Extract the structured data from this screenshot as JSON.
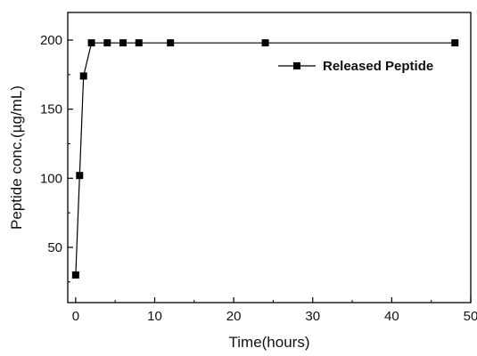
{
  "chart_data": {
    "type": "line",
    "xlabel": "Time(hours)",
    "ylabel": "Peptide conc.(µg/mL)",
    "xlim": [
      -1,
      50
    ],
    "ylim": [
      10,
      220
    ],
    "xticks": [
      0,
      10,
      20,
      30,
      40,
      50
    ],
    "yticks": [
      50,
      100,
      150,
      200
    ],
    "grid": false,
    "legend_position": "top-right",
    "series": [
      {
        "name": "Released Peptide",
        "marker": "square",
        "color": "#000000",
        "x": [
          0,
          0.5,
          1,
          2,
          4,
          6,
          8,
          12,
          24,
          48
        ],
        "y": [
          30,
          102,
          174,
          198,
          198,
          198,
          198,
          198,
          198,
          198
        ]
      }
    ]
  }
}
